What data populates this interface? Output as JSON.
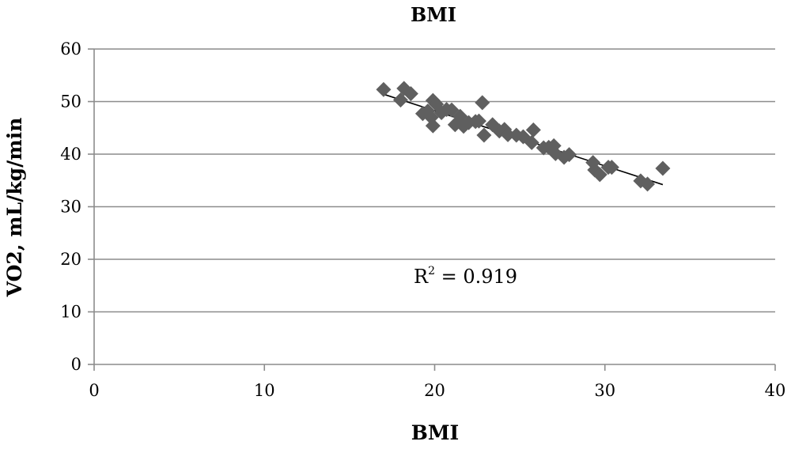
{
  "chart_data": {
    "type": "scatter",
    "title": "BMI",
    "xlabel": "BMI",
    "ylabel": "VO2, mL/kg/min",
    "xlim": [
      0,
      40
    ],
    "ylim": [
      0,
      60
    ],
    "x_ticks": [
      0,
      10,
      20,
      30,
      40
    ],
    "y_ticks": [
      0,
      10,
      20,
      30,
      40,
      50,
      60
    ],
    "grid": "horizontal",
    "legend": "none",
    "series": [
      {
        "marker": "diamond",
        "color": "#5f5f5f",
        "points": [
          [
            17.0,
            52.3
          ],
          [
            18.0,
            50.3
          ],
          [
            18.2,
            52.5
          ],
          [
            18.6,
            51.5
          ],
          [
            19.3,
            47.7
          ],
          [
            19.6,
            48.2
          ],
          [
            19.8,
            47.0
          ],
          [
            19.9,
            45.4
          ],
          [
            19.9,
            50.2
          ],
          [
            20.1,
            49.5
          ],
          [
            20.4,
            47.9
          ],
          [
            20.7,
            48.5
          ],
          [
            21.0,
            48.4
          ],
          [
            21.2,
            45.6
          ],
          [
            21.5,
            47.2
          ],
          [
            21.7,
            45.3
          ],
          [
            22.0,
            46.0
          ],
          [
            22.4,
            46.2
          ],
          [
            22.6,
            46.3
          ],
          [
            22.8,
            49.8
          ],
          [
            22.9,
            43.6
          ],
          [
            23.4,
            45.6
          ],
          [
            23.8,
            44.4
          ],
          [
            24.1,
            44.7
          ],
          [
            24.3,
            43.7
          ],
          [
            24.8,
            43.6
          ],
          [
            25.2,
            43.3
          ],
          [
            25.7,
            42.2
          ],
          [
            25.8,
            44.6
          ],
          [
            26.4,
            41.2
          ],
          [
            26.7,
            41.3
          ],
          [
            27.0,
            41.6
          ],
          [
            27.1,
            40.1
          ],
          [
            27.6,
            39.4
          ],
          [
            27.9,
            39.9
          ],
          [
            29.3,
            38.4
          ],
          [
            29.4,
            37.0
          ],
          [
            29.7,
            36.1
          ],
          [
            30.2,
            37.5
          ],
          [
            30.4,
            37.5
          ],
          [
            32.1,
            34.9
          ],
          [
            32.5,
            34.3
          ],
          [
            33.4,
            37.3
          ]
        ]
      }
    ],
    "trendline": {
      "type": "linear",
      "x_start": 17.0,
      "x_end": 33.4,
      "y_start": 51.4,
      "y_end": 34.2,
      "color": "#000000"
    },
    "annotations": {
      "r2_base": "R",
      "r2_sup": "2",
      "r2_rest": " = 0.919"
    }
  }
}
